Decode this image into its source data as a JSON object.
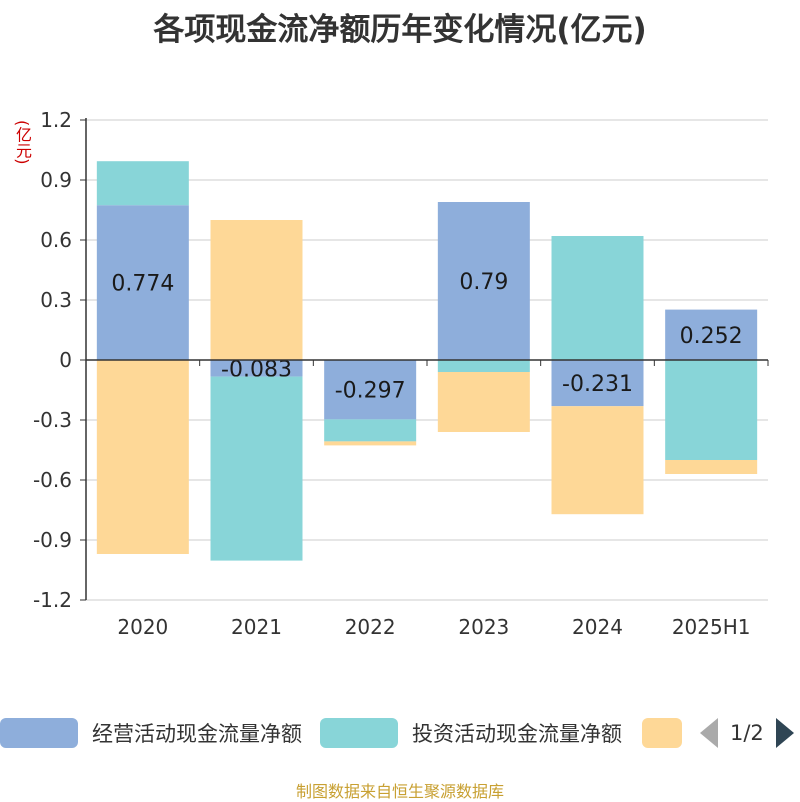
{
  "chart_data": {
    "type": "bar",
    "stacked": true,
    "title": "各项现金流净额历年变化情况(亿元)",
    "unit_label": "(亿元)",
    "categories": [
      "2020",
      "2021",
      "2022",
      "2023",
      "2024",
      "2025H1"
    ],
    "ylim": [
      -1.2,
      1.2
    ],
    "yticks": [
      "1.2",
      "0.9",
      "0.6",
      "0.3",
      "0",
      "-0.3",
      "-0.6",
      "-0.9",
      "-1.2"
    ],
    "grid": true,
    "legend_position": "bottom",
    "series": [
      {
        "name": "经营活动现金流量净额",
        "color": "#8eaedb",
        "values": [
          0.774,
          -0.083,
          -0.297,
          0.79,
          -0.231,
          0.252
        ],
        "labels": [
          "0.774",
          "-0.083",
          "-0.297",
          "0.79",
          "-0.231",
          "0.252"
        ]
      },
      {
        "name": "投资活动现金流量净额",
        "color": "#88d5d8",
        "values": [
          0.22,
          -0.92,
          -0.11,
          -0.06,
          0.62,
          -0.5
        ]
      },
      {
        "name": "",
        "color": "#fed897",
        "values": [
          -0.97,
          0.7,
          -0.02,
          -0.3,
          -0.54,
          -0.07
        ]
      }
    ]
  },
  "legend": {
    "pager_text": "1/2"
  },
  "source": "制图数据来自恒生聚源数据库"
}
